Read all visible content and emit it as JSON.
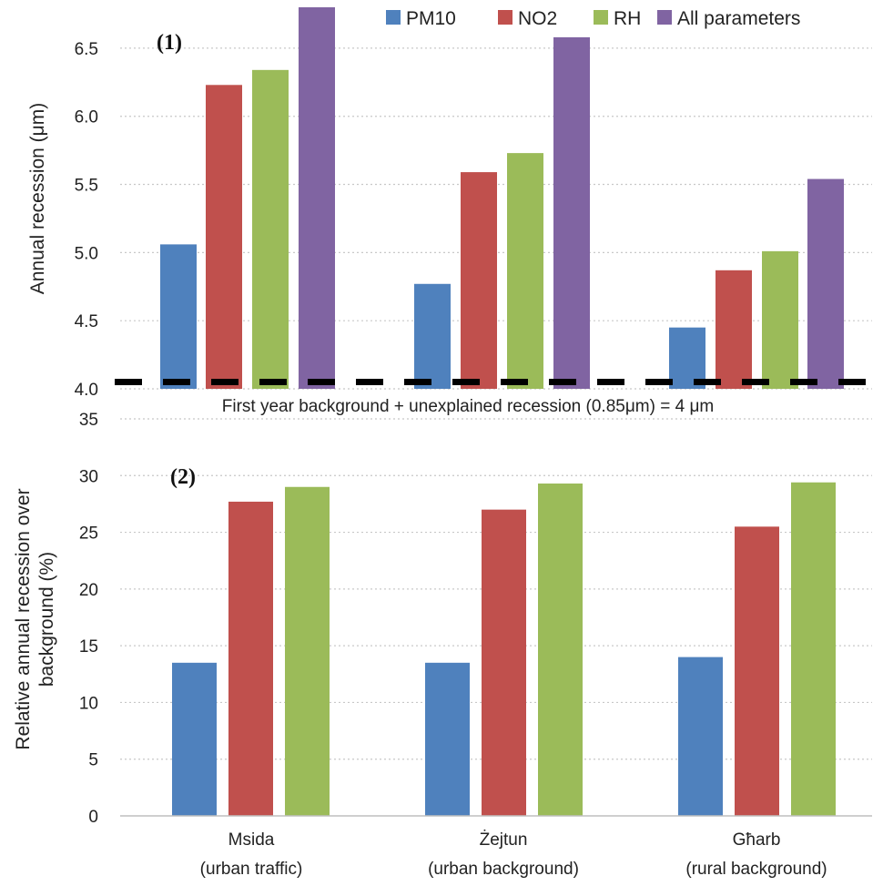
{
  "legend": {
    "items": [
      {
        "name": "PM10",
        "color": "#4f81bd"
      },
      {
        "name": "NO2",
        "color": "#c0504d"
      },
      {
        "name": "RH",
        "color": "#9bbb59"
      },
      {
        "name": "All parameters",
        "color": "#8064a2"
      }
    ]
  },
  "categories": [
    {
      "name": "Msida",
      "sub": "(urban traffic)"
    },
    {
      "name": "Żejtun",
      "sub": "(urban background)"
    },
    {
      "name": "Għarb",
      "sub": "(rural background)"
    }
  ],
  "chart_data": [
    {
      "type": "bar",
      "panel_label": "(1)",
      "ylabel": "Annual recession (μm)",
      "xlabel": "",
      "ylim": [
        4.0,
        6.8
      ],
      "yticks": [
        "4.0",
        "4.5",
        "5.0",
        "5.5",
        "6.0",
        "6.5"
      ],
      "grid": true,
      "categories": [
        "Msida",
        "Żejtun",
        "Għarb"
      ],
      "series": [
        {
          "name": "PM10",
          "values": [
            5.06,
            4.77,
            4.45
          ]
        },
        {
          "name": "NO2",
          "values": [
            6.23,
            5.59,
            4.87
          ]
        },
        {
          "name": "RH",
          "values": [
            6.34,
            5.73,
            5.01
          ]
        },
        {
          "name": "All parameters",
          "values": [
            6.8,
            6.58,
            5.54
          ]
        }
      ],
      "annotation": "First year background + unexplained recession (0.85μm) = 4 μm",
      "reference_line": {
        "value": 4.05,
        "style": "dashed-black"
      }
    },
    {
      "type": "bar",
      "panel_label": "(2)",
      "ylabel_lines": [
        "Relative annual recession  over",
        "background (%)"
      ],
      "xlabel": "",
      "ylim": [
        0,
        35
      ],
      "yticks": [
        "0",
        "5",
        "10",
        "15",
        "20",
        "25",
        "30",
        "35"
      ],
      "grid": true,
      "categories": [
        "Msida",
        "Żejtun",
        "Għarb"
      ],
      "series": [
        {
          "name": "PM10",
          "values": [
            13.5,
            13.5,
            14.0
          ]
        },
        {
          "name": "NO2",
          "values": [
            27.7,
            27.0,
            25.5
          ]
        },
        {
          "name": "RH",
          "values": [
            29.0,
            29.3,
            29.4
          ]
        }
      ]
    }
  ]
}
